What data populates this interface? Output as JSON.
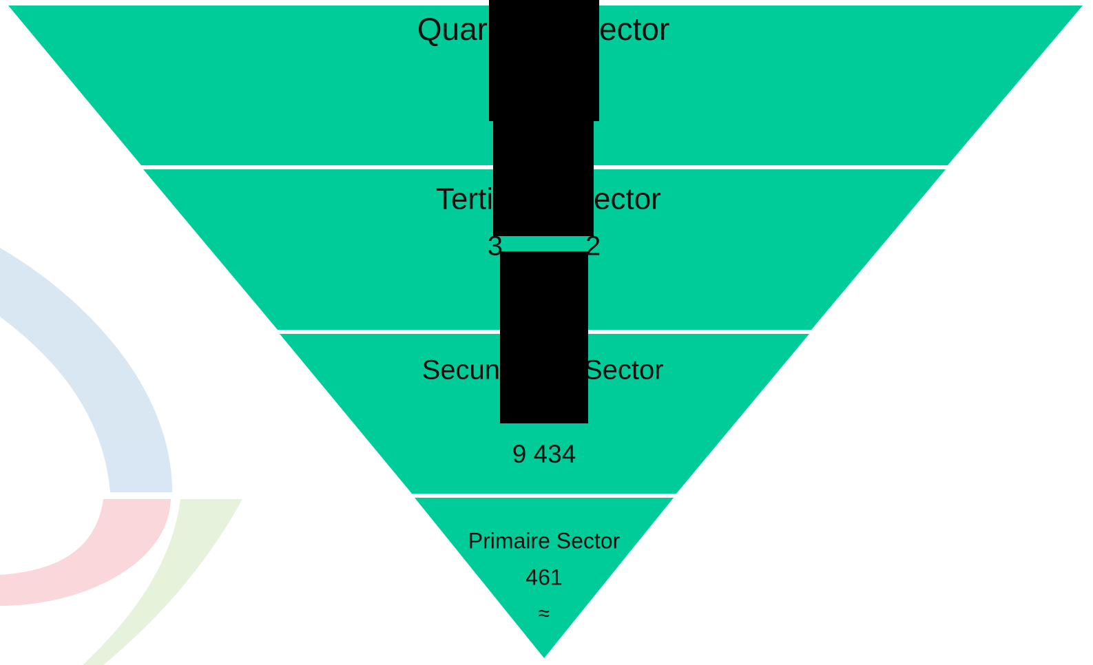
{
  "levels": [
    {
      "label_parts": [
        "Quar",
        "ector"
      ]
    },
    {
      "label_parts": [
        "Terti",
        "ector"
      ],
      "value_parts": [
        "3",
        "2"
      ]
    },
    {
      "label_parts": [
        "Secun",
        "Sector"
      ],
      "value": "9 434"
    },
    {
      "label": "Primaire Sector",
      "value": "461",
      "note": "≈"
    }
  ]
}
